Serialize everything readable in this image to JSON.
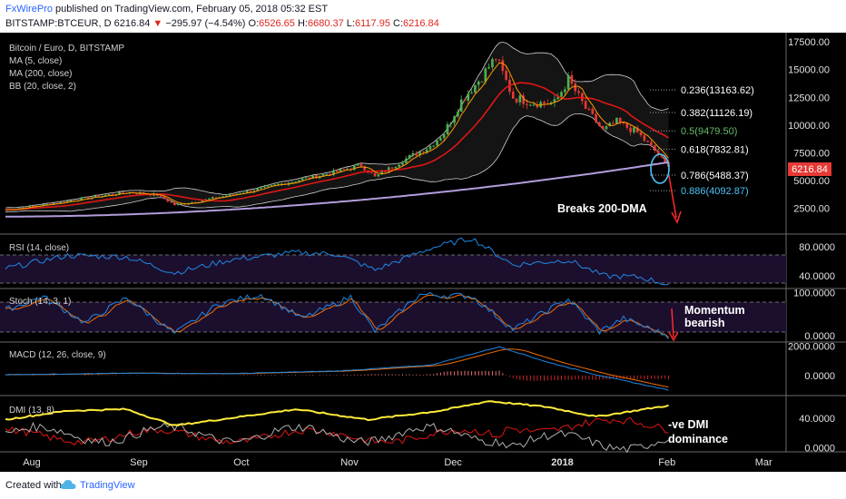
{
  "header": {
    "publisher": "FxWirePro",
    "published_text": "published on TradingView.com, February 05, 2018 05:32 EST",
    "symbol": "BITSTAMP:BTCEUR, D",
    "last": "6216.84",
    "change_arrow": "▼",
    "change": "−295.97 (−4.54%)",
    "ohlc_o_label": "O:",
    "ohlc_o": "6526.65",
    "ohlc_h_label": "H:",
    "ohlc_h": "6680.37",
    "ohlc_l_label": "L:",
    "ohlc_l": "6117.95",
    "ohlc_c_label": "C:",
    "ohlc_c": "6216.84"
  },
  "footer": {
    "created_with": "Created with",
    "brand": "TradingView",
    "brand_icon": "tradingview-cloud-icon"
  },
  "colors": {
    "background": "#000000",
    "up_candle": "#4caf50",
    "down_candle": "#e53935",
    "ma5": "#ff9800",
    "ma50_red": "#e01616",
    "ma200": "#b39ddb",
    "bb": "#cfcfcf",
    "rsi": "#1e88e5",
    "stoch_k": "#1e88e5",
    "stoch_d": "#ef6c00",
    "macd": "#1e88e5",
    "signal": "#ef6c00",
    "hist": "#e53935",
    "dmi_adx": "#ffeb3b",
    "dmi_plus": "#b0b0b0",
    "dmi_minus": "#e01616",
    "band_fill": "#2a1a3e",
    "last_price_tag": "#e53935",
    "annotation_arrow": "#ff2a2a",
    "circle": "#4fc3f7"
  },
  "chart_data": [
    {
      "type": "candlestick",
      "title": "Bitcoin / Euro, D, BITSTAMP",
      "legend": [
        "MA (5, close)",
        "MA (200, close)",
        "BB (20, close, 2)"
      ],
      "y_axis_ticks": [
        "17500.00",
        "15000.00",
        "12500.00",
        "10000.00",
        "7500.00",
        "5000.00",
        "2500.00"
      ],
      "y_axis_values": [
        17500,
        15000,
        12500,
        10000,
        7500,
        5000,
        2500
      ],
      "ylim": [
        500,
        18000
      ],
      "x_axis_ticks": [
        "Aug",
        "Sep",
        "Oct",
        "Nov",
        "Dec",
        "2018",
        "Feb",
        "Mar"
      ],
      "x_axis_dates": [
        "2017-08-01",
        "2017-09-01",
        "2017-10-01",
        "2017-11-01",
        "2017-12-01",
        "2018-01-01",
        "2018-02-01",
        "2018-03-01"
      ],
      "xlim": [
        "2017-07-28",
        "2018-03-10"
      ],
      "last_price_label": "6216.84",
      "price_keypoints": [
        {
          "date": "2017-07-28",
          "close": 2350
        },
        {
          "date": "2017-08-10",
          "close": 2900
        },
        {
          "date": "2017-08-20",
          "close": 3400
        },
        {
          "date": "2017-09-01",
          "close": 3950
        },
        {
          "date": "2017-09-10",
          "close": 3700
        },
        {
          "date": "2017-09-15",
          "close": 2800
        },
        {
          "date": "2017-09-22",
          "close": 3150
        },
        {
          "date": "2017-10-01",
          "close": 3700
        },
        {
          "date": "2017-10-12",
          "close": 4400
        },
        {
          "date": "2017-10-20",
          "close": 5000
        },
        {
          "date": "2017-11-01",
          "close": 5800
        },
        {
          "date": "2017-11-08",
          "close": 6400
        },
        {
          "date": "2017-11-12",
          "close": 5300
        },
        {
          "date": "2017-11-20",
          "close": 6800
        },
        {
          "date": "2017-11-28",
          "close": 8100
        },
        {
          "date": "2017-12-02",
          "close": 9300
        },
        {
          "date": "2017-12-07",
          "close": 12200
        },
        {
          "date": "2017-12-12",
          "close": 14000
        },
        {
          "date": "2017-12-17",
          "close": 16100
        },
        {
          "date": "2017-12-22",
          "close": 12500
        },
        {
          "date": "2017-12-28",
          "close": 12000
        },
        {
          "date": "2018-01-03",
          "close": 12000
        },
        {
          "date": "2018-01-07",
          "close": 14100
        },
        {
          "date": "2018-01-12",
          "close": 11500
        },
        {
          "date": "2018-01-17",
          "close": 9500
        },
        {
          "date": "2018-01-21",
          "close": 10300
        },
        {
          "date": "2018-01-27",
          "close": 9300
        },
        {
          "date": "2018-02-01",
          "close": 7700
        },
        {
          "date": "2018-02-05",
          "close": 6216.84
        }
      ],
      "fibonacci": [
        {
          "label": "0.236(13163.62)",
          "value": 13163.62
        },
        {
          "label": "0.382(11126.19)",
          "value": 11126.19
        },
        {
          "label": "0.5(9479.50)",
          "value": 9479.5
        },
        {
          "label": "0.618(7832.81)",
          "value": 7832.81
        },
        {
          "label": "0.786(5488.37)",
          "value": 5488.37
        },
        {
          "label": "0.886(4092.87)",
          "value": 4092.87
        }
      ],
      "annotation": "Breaks 200-DMA"
    },
    {
      "type": "line",
      "title": "RSI (14, close)",
      "y_axis_ticks": [
        "80.0000",
        "40.0000"
      ],
      "y_axis_values": [
        80,
        40
      ],
      "ylim": [
        25,
        95
      ],
      "bands": [
        70,
        30
      ],
      "series_keypoints": [
        {
          "date": "2017-07-28",
          "value": 50
        },
        {
          "date": "2017-08-15",
          "value": 68
        },
        {
          "date": "2017-09-01",
          "value": 66
        },
        {
          "date": "2017-09-15",
          "value": 44
        },
        {
          "date": "2017-10-01",
          "value": 62
        },
        {
          "date": "2017-10-20",
          "value": 72
        },
        {
          "date": "2017-11-01",
          "value": 70
        },
        {
          "date": "2017-11-12",
          "value": 48
        },
        {
          "date": "2017-11-28",
          "value": 78
        },
        {
          "date": "2017-12-10",
          "value": 92
        },
        {
          "date": "2017-12-22",
          "value": 55
        },
        {
          "date": "2018-01-07",
          "value": 62
        },
        {
          "date": "2018-01-17",
          "value": 40
        },
        {
          "date": "2018-01-28",
          "value": 38
        },
        {
          "date": "2018-02-05",
          "value": 28
        }
      ]
    },
    {
      "type": "line",
      "title": "Stoch (14, 3, 1)",
      "y_axis_ticks": [
        "100.0000",
        "0.0000"
      ],
      "y_axis_values": [
        100,
        0
      ],
      "ylim": [
        -8,
        105
      ],
      "bands": [
        80,
        20
      ],
      "annotation": "Momentum bearish",
      "series_keypoints": [
        {
          "date": "2017-07-28",
          "value": 60
        },
        {
          "date": "2017-08-08",
          "value": 90
        },
        {
          "date": "2017-08-20",
          "value": 30
        },
        {
          "date": "2017-09-01",
          "value": 88
        },
        {
          "date": "2017-09-15",
          "value": 5
        },
        {
          "date": "2017-09-28",
          "value": 75
        },
        {
          "date": "2017-10-10",
          "value": 95
        },
        {
          "date": "2017-10-22",
          "value": 40
        },
        {
          "date": "2017-11-05",
          "value": 90
        },
        {
          "date": "2017-11-12",
          "value": 10
        },
        {
          "date": "2017-11-25",
          "value": 95
        },
        {
          "date": "2017-12-10",
          "value": 92
        },
        {
          "date": "2017-12-22",
          "value": 15
        },
        {
          "date": "2018-01-07",
          "value": 85
        },
        {
          "date": "2018-01-16",
          "value": 10
        },
        {
          "date": "2018-01-23",
          "value": 40
        },
        {
          "date": "2018-02-05",
          "value": 0
        }
      ]
    },
    {
      "type": "line",
      "title": "MACD (12, 26, close, 9)",
      "y_axis_ticks": [
        "2000.0000",
        "0.0000"
      ],
      "y_axis_values": [
        2000,
        0
      ],
      "ylim": [
        -1250,
        2150
      ],
      "series_keypoints": [
        {
          "date": "2017-07-28",
          "value": 50
        },
        {
          "date": "2017-09-01",
          "value": 150
        },
        {
          "date": "2017-10-01",
          "value": 120
        },
        {
          "date": "2017-11-01",
          "value": 300
        },
        {
          "date": "2017-11-28",
          "value": 700
        },
        {
          "date": "2017-12-18",
          "value": 1950
        },
        {
          "date": "2018-01-01",
          "value": 900
        },
        {
          "date": "2018-01-15",
          "value": 50
        },
        {
          "date": "2018-02-05",
          "value": -1000
        }
      ]
    },
    {
      "type": "line",
      "title": "DMI (13, 8)",
      "y_axis_ticks": [
        "40.0000",
        "0.0000"
      ],
      "y_axis_values": [
        40,
        0
      ],
      "ylim": [
        -3,
        68
      ],
      "annotation": "-ve DMI dominance",
      "series_keypoints": [
        {
          "date": "2017-07-28",
          "value": 38
        },
        {
          "date": "2017-08-15",
          "value": 50
        },
        {
          "date": "2017-09-01",
          "value": 52
        },
        {
          "date": "2017-09-15",
          "value": 30
        },
        {
          "date": "2017-10-01",
          "value": 40
        },
        {
          "date": "2017-10-20",
          "value": 52
        },
        {
          "date": "2017-11-10",
          "value": 38
        },
        {
          "date": "2017-12-01",
          "value": 50
        },
        {
          "date": "2017-12-15",
          "value": 63
        },
        {
          "date": "2018-01-01",
          "value": 55
        },
        {
          "date": "2018-01-15",
          "value": 42
        },
        {
          "date": "2018-02-05",
          "value": 57
        }
      ]
    }
  ]
}
